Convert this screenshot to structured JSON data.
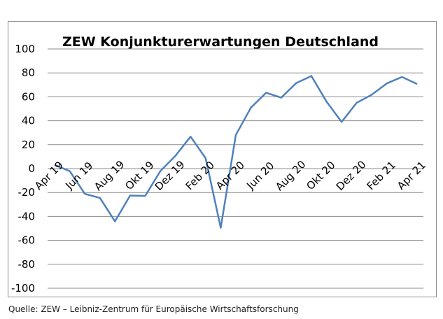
{
  "chart_data": {
    "type": "line",
    "title": "ZEW Konjunkturerwartungen Deutschland",
    "xlabel": "",
    "ylabel": "",
    "ylim": [
      -100,
      100
    ],
    "yticks": [
      100,
      80,
      60,
      40,
      20,
      0,
      -20,
      -40,
      -60,
      -80,
      -100
    ],
    "grid": true,
    "legend": "none",
    "x_tick_labels": [
      "Apr 19",
      "Jun 19",
      "Aug 19",
      "Okt 19",
      "Dez 19",
      "Feb 20",
      "Apr 20",
      "Jun 20",
      "Aug 20",
      "Okt 20",
      "Dez 20",
      "Feb 21",
      "Apr 21"
    ],
    "x": [
      "Apr 19",
      "Mai 19",
      "Jun 19",
      "Jul 19",
      "Aug 19",
      "Sep 19",
      "Okt 19",
      "Nov 19",
      "Dez 19",
      "Jan 20",
      "Feb 20",
      "Mär 20",
      "Apr 20",
      "Mai 20",
      "Jun 20",
      "Jul 20",
      "Aug 20",
      "Sep 20",
      "Okt 20",
      "Nov 20",
      "Dez 20",
      "Jan 21",
      "Feb 21",
      "Mär 21",
      "Apr 21"
    ],
    "series": [
      {
        "values": [
          3.1,
          -2.1,
          -21.1,
          -24.5,
          -44.1,
          -22.5,
          -22.8,
          -2.1,
          10.7,
          26.7,
          8.7,
          -49.5,
          28.2,
          51.0,
          63.4,
          59.3,
          71.5,
          77.4,
          56.1,
          39.0,
          55.0,
          61.8,
          71.2,
          76.6,
          70.7
        ],
        "color": "#4f81bd"
      }
    ],
    "colors": {
      "line": "#4f81bd",
      "grid": "#8c8c8c",
      "frame": "#8c8c8c",
      "text": "#000000"
    }
  },
  "source": "Quelle: ZEW – Leibniz-Zentrum für Europäische Wirtschaftsforschung"
}
